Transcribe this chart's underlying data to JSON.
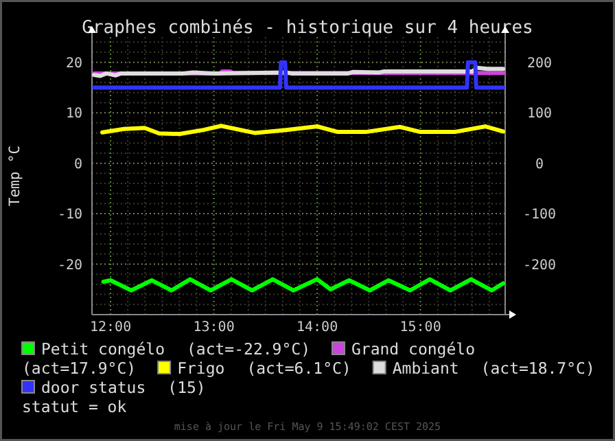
{
  "chart_data": {
    "type": "line",
    "title": "Graphes combinés - historique sur 4 heures",
    "ylabel": "Temp °C",
    "xlim": [
      11.82,
      15.82
    ],
    "xticks": [
      {
        "value": 12,
        "label": "12:00"
      },
      {
        "value": 12.1667,
        "label": null
      },
      {
        "value": 12.3333,
        "label": null
      },
      {
        "value": 12.5,
        "label": null
      },
      {
        "value": 12.6667,
        "label": null
      },
      {
        "value": 12.8333,
        "label": null
      },
      {
        "value": 13,
        "label": "13:00"
      },
      {
        "value": 13.1667,
        "label": null
      },
      {
        "value": 13.3333,
        "label": null
      },
      {
        "value": 13.5,
        "label": null
      },
      {
        "value": 13.6667,
        "label": null
      },
      {
        "value": 13.8333,
        "label": null
      },
      {
        "value": 14,
        "label": "14:00"
      },
      {
        "value": 14.1667,
        "label": null
      },
      {
        "value": 14.3333,
        "label": null
      },
      {
        "value": 14.5,
        "label": null
      },
      {
        "value": 14.6667,
        "label": null
      },
      {
        "value": 14.8333,
        "label": null
      },
      {
        "value": 15,
        "label": "15:00"
      },
      {
        "value": 15.1667,
        "label": null
      },
      {
        "value": 15.3333,
        "label": null
      },
      {
        "value": 15.5,
        "label": null
      },
      {
        "value": 15.6667,
        "label": null
      }
    ],
    "ylim": [
      -30,
      25
    ],
    "yticks": [
      {
        "value": -28,
        "label": null
      },
      {
        "value": -26,
        "label": null
      },
      {
        "value": -24,
        "label": null
      },
      {
        "value": -22,
        "label": null
      },
      -20,
      {
        "value": -18,
        "label": null
      },
      {
        "value": -16,
        "label": null
      },
      {
        "value": -14,
        "label": null
      },
      {
        "value": -12,
        "label": null
      },
      -10,
      {
        "value": -8,
        "label": null
      },
      {
        "value": -6,
        "label": null
      },
      {
        "value": -4,
        "label": null
      },
      {
        "value": -2,
        "label": null
      },
      0,
      {
        "value": 2,
        "label": null
      },
      {
        "value": 4,
        "label": null
      },
      {
        "value": 6,
        "label": null
      },
      {
        "value": 8,
        "label": null
      },
      10,
      {
        "value": 12,
        "label": null
      },
      {
        "value": 14,
        "label": null
      },
      {
        "value": 16,
        "label": null
      },
      {
        "value": 18,
        "label": null
      },
      20,
      {
        "value": 22,
        "label": null
      },
      {
        "value": 24,
        "label": null
      }
    ],
    "y2lim": [
      -300,
      250
    ],
    "y2ticks": [
      -200,
      -100,
      0,
      100,
      200
    ],
    "grid": true,
    "legend": "bottom",
    "line_style": "solid",
    "marker": "none",
    "series": [
      {
        "name": "Petit congélo",
        "color": "#00ff00",
        "x": [
          11.93,
          12.0,
          12.2,
          12.4,
          12.59,
          12.77,
          12.97,
          13.17,
          13.37,
          13.57,
          13.77,
          14.0,
          14.13,
          14.31,
          14.51,
          14.69,
          14.9,
          15.09,
          15.29,
          15.49,
          15.69,
          15.8
        ],
        "values": [
          -23.5,
          -23.2,
          -25.2,
          -23.2,
          -25.2,
          -23.0,
          -25.2,
          -23.0,
          -25.2,
          -23.0,
          -25.2,
          -23.0,
          -25.0,
          -23.2,
          -25.2,
          -23.2,
          -25.2,
          -23.0,
          -25.2,
          -23.0,
          -25.2,
          -23.8
        ]
      },
      {
        "name": "Grand congélo",
        "color": "#cc44dd",
        "x": [
          11.84,
          13.06,
          13.08,
          13.16,
          13.18,
          15.8
        ],
        "values": [
          17.8,
          17.8,
          18.2,
          18.2,
          17.9,
          17.9
        ]
      },
      {
        "name": "Frigo",
        "color": "#ffff00",
        "x": [
          11.92,
          12.13,
          12.33,
          12.47,
          12.67,
          12.9,
          13.07,
          13.4,
          13.7,
          14.0,
          14.2,
          14.47,
          14.8,
          15.0,
          15.33,
          15.63,
          15.8
        ],
        "values": [
          6.1,
          6.8,
          7.0,
          5.9,
          5.8,
          6.6,
          7.4,
          6.0,
          6.6,
          7.3,
          6.2,
          6.2,
          7.2,
          6.2,
          6.2,
          7.3,
          6.3
        ]
      },
      {
        "name": "Ambiant",
        "color": "#dddddd",
        "x": [
          11.84,
          11.9,
          11.96,
          12.05,
          12.1,
          12.2,
          12.7,
          12.8,
          13.0,
          13.7,
          13.75,
          14.3,
          14.35,
          14.6,
          14.65,
          15.5,
          15.55,
          15.65,
          15.8
        ],
        "values": [
          17.5,
          17.3,
          17.8,
          17.4,
          17.8,
          17.8,
          17.8,
          18.0,
          17.8,
          18.0,
          17.8,
          17.8,
          18.1,
          18.0,
          18.2,
          18.2,
          18.9,
          18.7,
          18.7
        ]
      },
      {
        "name": "door status",
        "color": "#3333ff",
        "x": [
          11.84,
          13.64,
          13.65,
          13.69,
          13.7,
          15.45,
          15.46,
          15.53,
          15.54,
          15.8
        ],
        "values": [
          15,
          15,
          20,
          20,
          15,
          15,
          20,
          20,
          15,
          15
        ]
      }
    ],
    "annotations": [
      "(act=-22.9°C)",
      "(act=17.9°C)",
      "(act=6.1°C)",
      "(act=18.7°C)",
      "(15)",
      "statut = ok",
      "mise à jour le Fri May  9 15:49:02 CEST 2025"
    ]
  }
}
